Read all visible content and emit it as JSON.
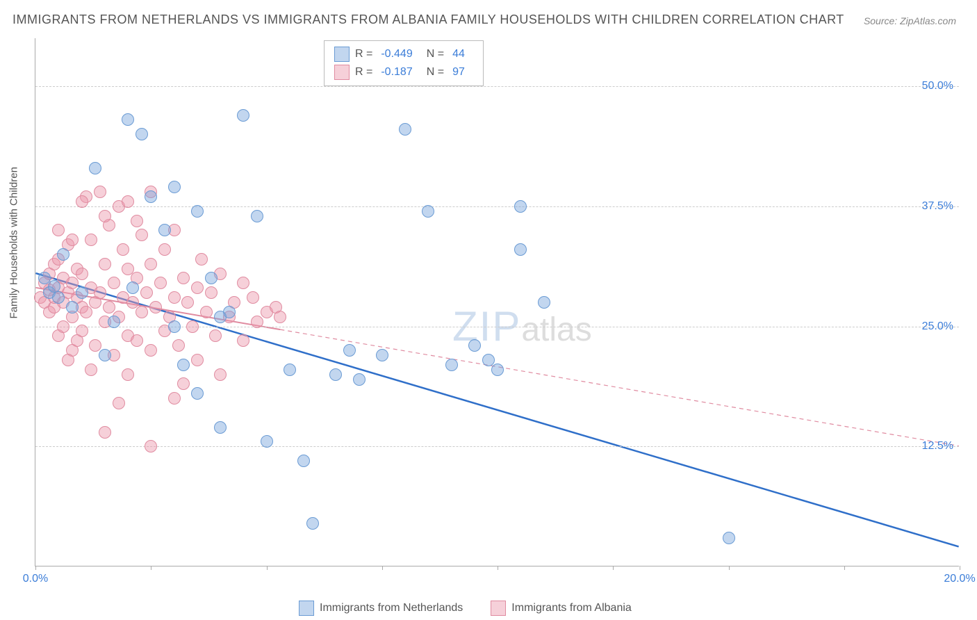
{
  "title": "IMMIGRANTS FROM NETHERLANDS VS IMMIGRANTS FROM ALBANIA FAMILY HOUSEHOLDS WITH CHILDREN CORRELATION CHART",
  "source": "Source: ZipAtlas.com",
  "ylabel": "Family Households with Children",
  "watermark_zip": "ZIP",
  "watermark_atlas": "atlas",
  "chart": {
    "type": "scatter",
    "xlim": [
      0,
      20
    ],
    "ylim": [
      0,
      55
    ],
    "xticks": [
      0,
      2.5,
      5,
      7.5,
      10,
      12.5,
      15,
      17.5,
      20
    ],
    "xtick_labels": {
      "0": "0.0%",
      "20": "20.0%"
    },
    "yticks": [
      12.5,
      25,
      37.5,
      50
    ],
    "ytick_labels": {
      "12.5": "12.5%",
      "25": "25.0%",
      "37.5": "37.5%",
      "50": "50.0%"
    },
    "background_color": "#ffffff",
    "grid_color": "#cccccc",
    "axis_color": "#aaaaaa",
    "tick_label_color": "#3b7dd8",
    "label_color": "#555555",
    "title_fontsize": 18,
    "label_fontsize": 15,
    "tick_fontsize": 16,
    "point_radius": 9
  },
  "series": [
    {
      "name": "Immigrants from Netherlands",
      "legend_label": "Immigrants from Netherlands",
      "fill_color": "rgba(120,165,220,0.45)",
      "stroke_color": "#6a9bd4",
      "trend_color": "#2f6fc9",
      "trend_width": 2.5,
      "trend_dash": "none",
      "stats": {
        "R_label": "R =",
        "R": "-0.449",
        "N_label": "N =",
        "N": "44"
      },
      "trend": {
        "x1": 0,
        "y1": 30.5,
        "x2": 20,
        "y2": 2.0,
        "solid_until_x": 20
      },
      "points": [
        [
          0.2,
          30.0
        ],
        [
          0.3,
          28.5
        ],
        [
          0.4,
          29.2
        ],
        [
          0.5,
          28.0
        ],
        [
          0.6,
          32.5
        ],
        [
          0.8,
          27.0
        ],
        [
          1.0,
          28.5
        ],
        [
          1.3,
          41.5
        ],
        [
          1.5,
          22.0
        ],
        [
          1.7,
          25.5
        ],
        [
          2.0,
          46.5
        ],
        [
          2.1,
          29.0
        ],
        [
          2.3,
          45.0
        ],
        [
          2.5,
          38.5
        ],
        [
          2.8,
          35.0
        ],
        [
          3.0,
          39.5
        ],
        [
          3.0,
          25.0
        ],
        [
          3.2,
          21.0
        ],
        [
          3.5,
          18.0
        ],
        [
          3.5,
          37.0
        ],
        [
          3.8,
          30.0
        ],
        [
          4.0,
          14.5
        ],
        [
          4.2,
          26.5
        ],
        [
          4.5,
          47.0
        ],
        [
          4.8,
          36.5
        ],
        [
          5.0,
          13.0
        ],
        [
          5.5,
          20.5
        ],
        [
          5.8,
          11.0
        ],
        [
          6.0,
          4.5
        ],
        [
          6.5,
          20.0
        ],
        [
          6.8,
          22.5
        ],
        [
          7.0,
          19.5
        ],
        [
          7.5,
          22.0
        ],
        [
          8.0,
          45.5
        ],
        [
          8.5,
          37.0
        ],
        [
          9.0,
          21.0
        ],
        [
          9.5,
          23.0
        ],
        [
          9.8,
          21.5
        ],
        [
          10.5,
          33.0
        ],
        [
          10.5,
          37.5
        ],
        [
          11.0,
          27.5
        ],
        [
          15.0,
          3.0
        ],
        [
          10.0,
          20.5
        ],
        [
          4.0,
          26.0
        ]
      ]
    },
    {
      "name": "Immigrants from Albania",
      "legend_label": "Immigrants from Albania",
      "fill_color": "rgba(235,150,170,0.45)",
      "stroke_color": "#e08ba0",
      "trend_color": "#e08ba0",
      "trend_width": 2,
      "trend_dash": "6,5",
      "stats": {
        "R_label": "R =",
        "R": "-0.187",
        "N_label": "N =",
        "N": "97"
      },
      "trend": {
        "x1": 0,
        "y1": 29.0,
        "x2": 20,
        "y2": 12.5,
        "solid_until_x": 5.3
      },
      "points": [
        [
          0.1,
          28.0
        ],
        [
          0.2,
          29.5
        ],
        [
          0.2,
          27.5
        ],
        [
          0.3,
          28.8
        ],
        [
          0.3,
          30.5
        ],
        [
          0.3,
          26.5
        ],
        [
          0.4,
          27.0
        ],
        [
          0.4,
          31.5
        ],
        [
          0.4,
          28.0
        ],
        [
          0.5,
          29.0
        ],
        [
          0.5,
          24.0
        ],
        [
          0.5,
          32.0
        ],
        [
          0.6,
          27.5
        ],
        [
          0.6,
          30.0
        ],
        [
          0.6,
          25.0
        ],
        [
          0.7,
          28.5
        ],
        [
          0.7,
          33.5
        ],
        [
          0.8,
          26.0
        ],
        [
          0.8,
          29.5
        ],
        [
          0.8,
          22.5
        ],
        [
          0.9,
          28.0
        ],
        [
          0.9,
          31.0
        ],
        [
          1.0,
          27.0
        ],
        [
          1.0,
          24.5
        ],
        [
          1.0,
          30.5
        ],
        [
          1.1,
          38.5
        ],
        [
          1.1,
          26.5
        ],
        [
          1.2,
          29.0
        ],
        [
          1.2,
          34.0
        ],
        [
          1.3,
          23.0
        ],
        [
          1.3,
          27.5
        ],
        [
          1.4,
          28.5
        ],
        [
          1.4,
          39.0
        ],
        [
          1.5,
          31.5
        ],
        [
          1.5,
          25.5
        ],
        [
          1.5,
          14.0
        ],
        [
          1.6,
          35.5
        ],
        [
          1.6,
          27.0
        ],
        [
          1.7,
          29.5
        ],
        [
          1.7,
          22.0
        ],
        [
          1.8,
          37.5
        ],
        [
          1.8,
          26.0
        ],
        [
          1.9,
          33.0
        ],
        [
          1.9,
          28.0
        ],
        [
          2.0,
          31.0
        ],
        [
          2.0,
          24.0
        ],
        [
          2.0,
          38.0
        ],
        [
          2.1,
          27.5
        ],
        [
          2.2,
          23.5
        ],
        [
          2.2,
          30.0
        ],
        [
          2.3,
          34.5
        ],
        [
          2.3,
          26.5
        ],
        [
          2.4,
          28.5
        ],
        [
          2.5,
          39.0
        ],
        [
          2.5,
          22.5
        ],
        [
          2.5,
          31.5
        ],
        [
          2.6,
          27.0
        ],
        [
          2.7,
          29.5
        ],
        [
          2.8,
          24.5
        ],
        [
          2.8,
          33.0
        ],
        [
          2.9,
          26.0
        ],
        [
          3.0,
          28.0
        ],
        [
          3.0,
          35.0
        ],
        [
          3.1,
          23.0
        ],
        [
          3.2,
          30.0
        ],
        [
          3.2,
          19.0
        ],
        [
          3.3,
          27.5
        ],
        [
          3.4,
          25.0
        ],
        [
          3.5,
          29.0
        ],
        [
          3.5,
          21.5
        ],
        [
          3.6,
          32.0
        ],
        [
          3.7,
          26.5
        ],
        [
          3.8,
          28.5
        ],
        [
          3.9,
          24.0
        ],
        [
          4.0,
          30.5
        ],
        [
          4.0,
          20.0
        ],
        [
          4.2,
          26.0
        ],
        [
          4.3,
          27.5
        ],
        [
          4.5,
          29.5
        ],
        [
          4.5,
          23.5
        ],
        [
          4.7,
          28.0
        ],
        [
          4.8,
          25.5
        ],
        [
          5.0,
          26.5
        ],
        [
          5.2,
          27.0
        ],
        [
          5.3,
          26.0
        ],
        [
          1.0,
          38.0
        ],
        [
          0.7,
          21.5
        ],
        [
          1.2,
          20.5
        ],
        [
          2.0,
          20.0
        ],
        [
          3.0,
          17.5
        ],
        [
          2.5,
          12.5
        ],
        [
          1.8,
          17.0
        ],
        [
          0.5,
          35.0
        ],
        [
          0.8,
          34.0
        ],
        [
          1.5,
          36.5
        ],
        [
          2.2,
          36.0
        ],
        [
          0.9,
          23.5
        ]
      ]
    }
  ]
}
